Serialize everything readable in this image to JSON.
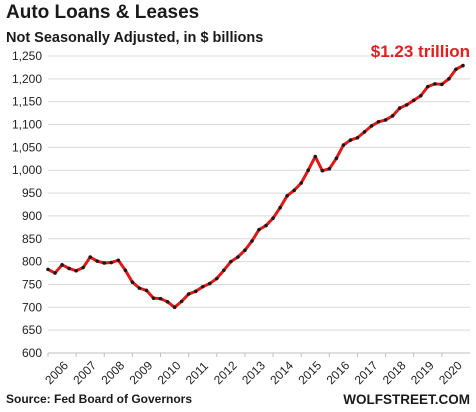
{
  "chart_data": {
    "type": "line",
    "title": "Auto Loans & Leases",
    "subtitle": "Not Seasonally Adjusted, in $ billions",
    "xlabel": "",
    "ylabel": "",
    "ylim": [
      600,
      1250
    ],
    "y_ticks": [
      "600",
      "650",
      "700",
      "750",
      "800",
      "850",
      "900",
      "950",
      "1,000",
      "1,050",
      "1,100",
      "1,150",
      "1,200",
      "1,250"
    ],
    "x_ticks": [
      "2006",
      "2007",
      "2008",
      "2009",
      "2010",
      "2011",
      "2012",
      "2013",
      "2014",
      "2015",
      "2016",
      "2017",
      "2018",
      "2019",
      "2020"
    ],
    "grid": "horizontal",
    "annotation": "$1.23 trillion",
    "series": [
      {
        "color": "#e01818",
        "marker_color": "#1a1a1a",
        "x": [
          2006.0,
          2006.25,
          2006.5,
          2006.75,
          2007.0,
          2007.25,
          2007.5,
          2007.75,
          2008.0,
          2008.25,
          2008.5,
          2008.75,
          2009.0,
          2009.25,
          2009.5,
          2009.75,
          2010.0,
          2010.25,
          2010.5,
          2010.75,
          2011.0,
          2011.25,
          2011.5,
          2011.75,
          2012.0,
          2012.25,
          2012.5,
          2012.75,
          2013.0,
          2013.25,
          2013.5,
          2013.75,
          2014.0,
          2014.25,
          2014.5,
          2014.75,
          2015.0,
          2015.25,
          2015.5,
          2015.75,
          2016.0,
          2016.25,
          2016.5,
          2016.75,
          2017.0,
          2017.25,
          2017.5,
          2017.75,
          2018.0,
          2018.25,
          2018.5,
          2018.75,
          2019.0,
          2019.25,
          2019.5,
          2019.75,
          2020.0,
          2020.25,
          2020.5,
          2020.75
        ],
        "values": [
          783,
          775,
          793,
          785,
          780,
          787,
          810,
          801,
          797,
          798,
          803,
          781,
          755,
          742,
          737,
          720,
          719,
          712,
          700,
          713,
          729,
          735,
          745,
          752,
          763,
          781,
          800,
          810,
          825,
          845,
          870,
          879,
          895,
          918,
          944,
          956,
          972,
          1000,
          1030,
          999,
          1003,
          1026,
          1055,
          1066,
          1071,
          1084,
          1097,
          1106,
          1110,
          1119,
          1136,
          1143,
          1153,
          1163,
          1183,
          1189,
          1188,
          1200,
          1221,
          1229
        ]
      }
    ]
  },
  "footer": {
    "source": "Source: Fed Board of Governors",
    "brand": "WOLFSTREET.COM"
  }
}
